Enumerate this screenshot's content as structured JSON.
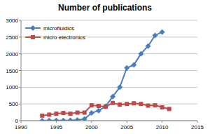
{
  "chart_data": {
    "type": "line",
    "title": "Number of publications",
    "x": [
      1993,
      1994,
      1995,
      1996,
      1997,
      1998,
      1999,
      2000,
      2001,
      2002,
      2003,
      2004,
      2005,
      2006,
      2007,
      2008,
      2009,
      2010,
      2011
    ],
    "series": [
      {
        "name": "microfluidics",
        "color": "#4a7ebb",
        "marker": "diamond",
        "values": [
          0,
          5,
          5,
          5,
          10,
          20,
          50,
          230,
          300,
          430,
          720,
          1000,
          1580,
          1670,
          2000,
          2230,
          2550,
          2650,
          null
        ]
      },
      {
        "name": "micro electronics",
        "color": "#be4b48",
        "marker": "square",
        "values": [
          150,
          180,
          210,
          230,
          210,
          240,
          240,
          460,
          440,
          420,
          530,
          480,
          500,
          520,
          500,
          450,
          460,
          400,
          350
        ]
      }
    ],
    "xlim": [
      1990,
      2015
    ],
    "xticks": [
      1990,
      1995,
      2000,
      2005,
      2010,
      2015
    ],
    "ylim": [
      0,
      3000
    ],
    "yticks": [
      0,
      500,
      1000,
      1500,
      2000,
      2500,
      3000
    ],
    "grid": true,
    "legend": "upper left"
  }
}
